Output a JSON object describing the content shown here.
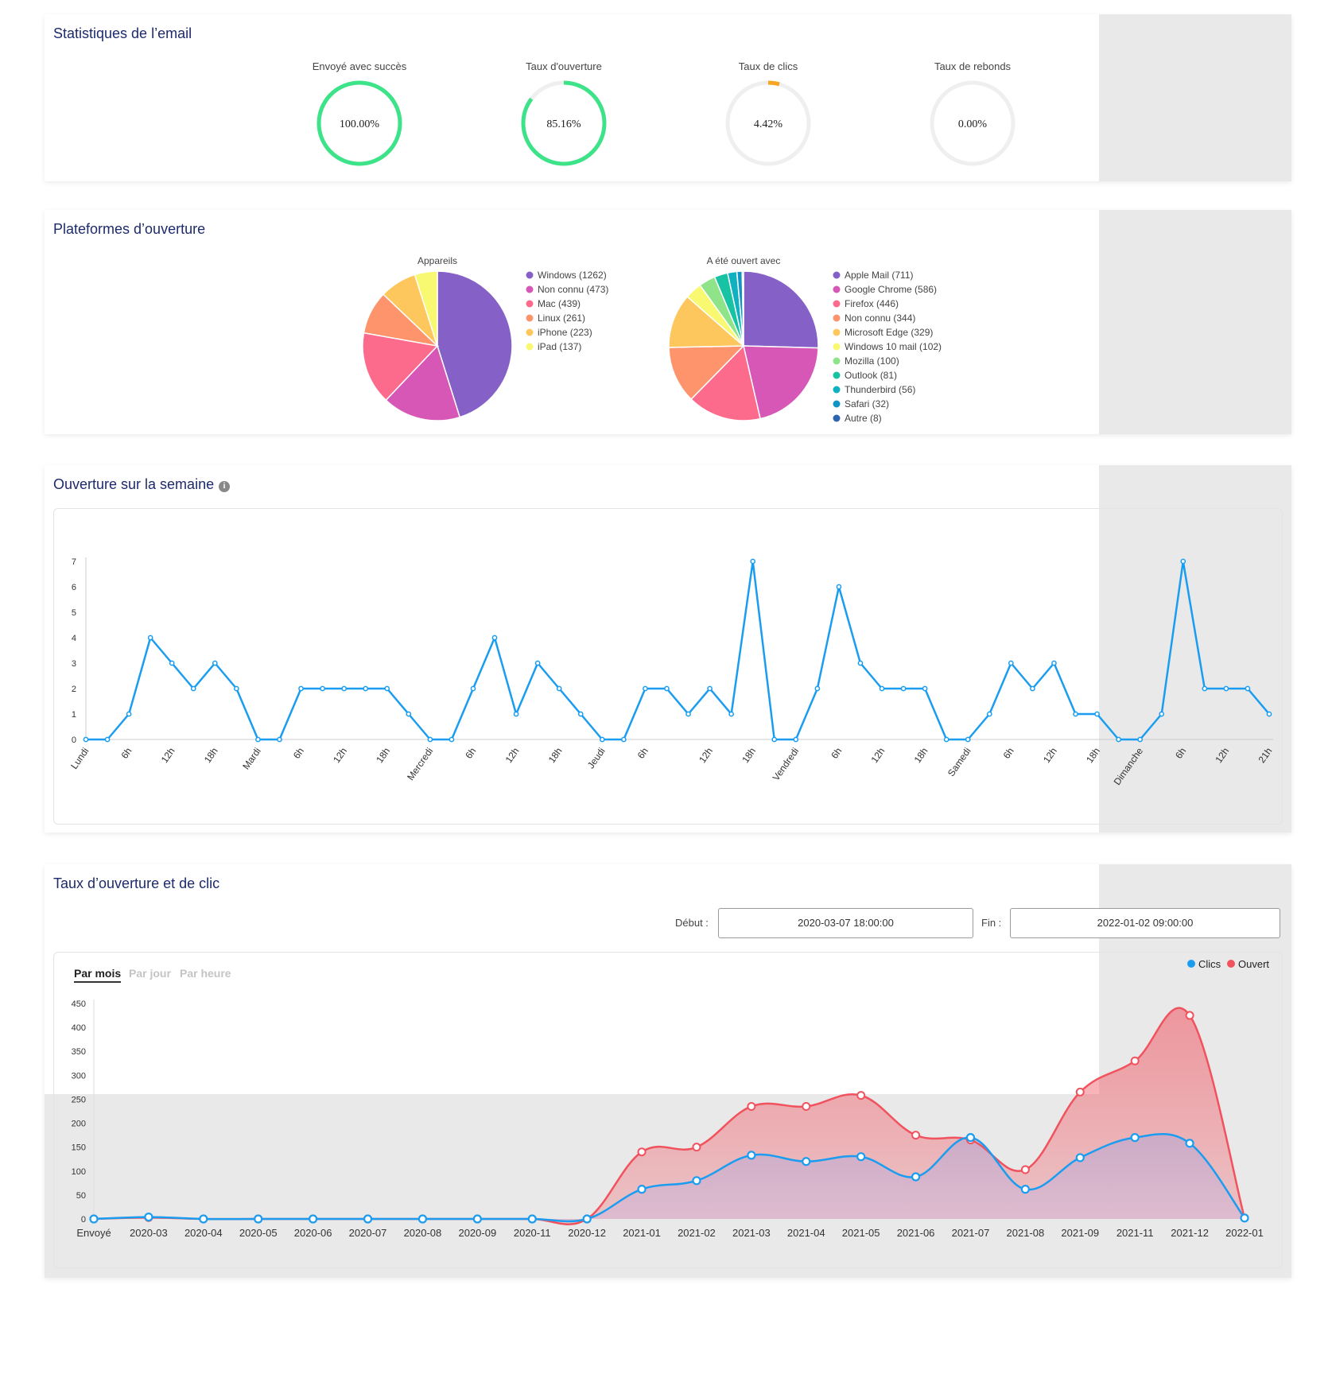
{
  "cards": {
    "email_stats_title": "Statistiques de l’email",
    "platforms_title": "Plateformes d’ouverture",
    "week_title": "Ouverture sur la semaine",
    "rate_title": "Taux d’ouverture et de clic"
  },
  "gauges": [
    {
      "label": "Envoyé avec succès",
      "value_text": "100.00%",
      "fraction": 1.0,
      "color": "#3de388"
    },
    {
      "label": "Taux d'ouverture",
      "value_text": "85.16%",
      "fraction": 0.8516,
      "color": "#3de388"
    },
    {
      "label": "Taux de clics",
      "value_text": "4.42%",
      "fraction": 0.0442,
      "color": "#f5a623"
    },
    {
      "label": "Taux de rebonds",
      "value_text": "0.00%",
      "fraction": 0.0,
      "color": "#f5a623"
    }
  ],
  "date_range": {
    "start_label": "Début :",
    "start_value": "2020-03-07 18:00:00",
    "end_label": "Fin :",
    "end_value": "2022-01-02 09:00:00"
  },
  "tabs": [
    "Par mois",
    "Par jour",
    "Par heure"
  ],
  "colors": {
    "shade": "#e9e9e9",
    "week_line": "#1a9df0",
    "clics": "#1a9df0",
    "ouvert": "#f0525e"
  },
  "chart_data": [
    {
      "type": "pie",
      "title": "Appareils",
      "slices": [
        {
          "label": "Windows (1262)",
          "value": 1262,
          "color": "#8560c6"
        },
        {
          "label": "Non connu (473)",
          "value": 473,
          "color": "#d657b5"
        },
        {
          "label": "Mac (439)",
          "value": 439,
          "color": "#fd6b8c"
        },
        {
          "label": "Linux (261)",
          "value": 261,
          "color": "#fd946b"
        },
        {
          "label": "iPhone (223)",
          "value": 223,
          "color": "#fec75e"
        },
        {
          "label": "iPad (137)",
          "value": 137,
          "color": "#f9f871"
        }
      ],
      "legend": "right"
    },
    {
      "type": "pie",
      "title": "A été ouvert avec",
      "slices": [
        {
          "label": "Apple Mail (711)",
          "value": 711,
          "color": "#8560c6"
        },
        {
          "label": "Google Chrome (586)",
          "value": 586,
          "color": "#d657b5"
        },
        {
          "label": "Firefox (446)",
          "value": 446,
          "color": "#fd6b8c"
        },
        {
          "label": "Non connu (344)",
          "value": 344,
          "color": "#fd946b"
        },
        {
          "label": "Microsoft Edge (329)",
          "value": 329,
          "color": "#fec75e"
        },
        {
          "label": "Windows 10 mail (102)",
          "value": 102,
          "color": "#f9f871"
        },
        {
          "label": "Mozilla (100)",
          "value": 100,
          "color": "#8fe388"
        },
        {
          "label": "Outlook (81)",
          "value": 81,
          "color": "#17c3a2"
        },
        {
          "label": "Thunderbird (56)",
          "value": 56,
          "color": "#0fb1c1"
        },
        {
          "label": "Safari (32)",
          "value": 32,
          "color": "#1195c4"
        },
        {
          "label": "Autre (8)",
          "value": 8,
          "color": "#2f65b0"
        }
      ],
      "legend": "right"
    },
    {
      "type": "line",
      "title": "",
      "x_tick_labels": [
        "Lundi",
        "6h",
        "12h",
        "18h",
        "Mardi",
        "6h",
        "12h",
        "18h",
        "Mercredi",
        "6h",
        "12h",
        "18h",
        "Jeudi",
        "6h",
        "12h",
        "18h",
        "Vendredi",
        "6h",
        "12h",
        "18h",
        "Samedi",
        "6h",
        "12h",
        "18h",
        "Dimanche",
        "6h",
        "12h",
        "21h"
      ],
      "values": [
        0,
        0,
        1,
        4,
        3,
        2,
        3,
        2,
        0,
        0,
        2,
        2,
        2,
        2,
        2,
        1,
        0,
        0,
        2,
        4,
        1,
        3,
        2,
        1,
        0,
        0,
        2,
        2,
        1,
        2,
        1,
        7,
        0,
        0,
        2,
        6,
        3,
        2,
        2,
        2,
        0,
        0,
        1,
        3,
        2,
        3,
        1,
        1,
        0,
        0,
        1,
        7,
        2,
        2,
        2,
        1
      ],
      "ylim": [
        0,
        7
      ],
      "yticks": [
        0,
        1,
        2,
        3,
        4,
        5,
        6,
        7
      ],
      "grid": false
    },
    {
      "type": "area",
      "categories": [
        "Envoyé",
        "2020-03",
        "2020-04",
        "2020-05",
        "2020-06",
        "2020-07",
        "2020-08",
        "2020-09",
        "2020-11",
        "2020-12",
        "2021-01",
        "2021-02",
        "2021-03",
        "2021-04",
        "2021-05",
        "2021-06",
        "2021-07",
        "2021-08",
        "2021-09",
        "2021-11",
        "2021-12",
        "2022-01"
      ],
      "series": [
        {
          "name": "Clics",
          "values": [
            0,
            4,
            0,
            0,
            0,
            0,
            0,
            0,
            0,
            0,
            62,
            80,
            133,
            120,
            130,
            88,
            170,
            62,
            128,
            170,
            158,
            2
          ]
        },
        {
          "name": "Ouvert",
          "values": [
            0,
            3,
            0,
            0,
            0,
            0,
            0,
            0,
            0,
            0,
            140,
            150,
            235,
            235,
            258,
            175,
            165,
            103,
            265,
            330,
            425,
            2
          ]
        }
      ],
      "ylim": [
        0,
        450
      ],
      "yticks": [
        0,
        50,
        100,
        150,
        200,
        250,
        300,
        350,
        400,
        450
      ],
      "legend": "top-right"
    }
  ]
}
